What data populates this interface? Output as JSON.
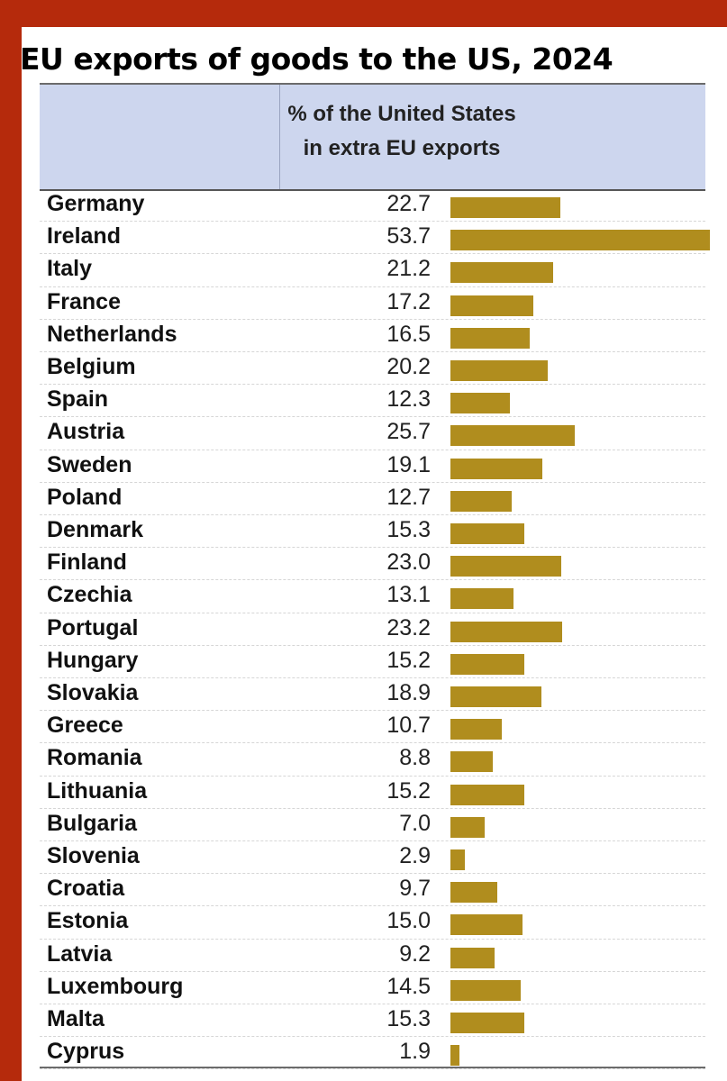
{
  "title": "EU exports of goods to the US, 2024",
  "colors": {
    "frame": "#b52a0c",
    "header_bg": "#cdd6ee",
    "bar": "#b08d1e"
  },
  "chart_data": {
    "type": "bar",
    "title": "EU exports of goods to the US, 2024",
    "column_header_line1": "% of the United States",
    "column_header_line2": "in extra EU exports",
    "xlim": [
      0,
      60
    ],
    "categories": [
      "Germany",
      "Ireland",
      "Italy",
      "France",
      "Netherlands",
      "Belgium",
      "Spain",
      "Austria",
      "Sweden",
      "Poland",
      "Denmark",
      "Finland",
      "Czechia",
      "Portugal",
      "Hungary",
      "Slovakia",
      "Greece",
      "Romania",
      "Lithuania",
      "Bulgaria",
      "Slovenia",
      "Croatia",
      "Estonia",
      "Latvia",
      "Luxembourg",
      "Malta",
      "Cyprus"
    ],
    "labels": [
      "22.7",
      "53.7",
      "21.2",
      "17.2",
      "16.5",
      "20.2",
      "12.3",
      "25.7",
      "19.1",
      "12.7",
      "15.3",
      "23.0",
      "13.1",
      "23.2",
      "15.2",
      "18.9",
      "10.7",
      "8.8",
      "15.2",
      "7.0",
      "2.9",
      "9.7",
      "15.0",
      "9.2",
      "14.5",
      "15.3",
      "1.9"
    ],
    "values": [
      22.7,
      53.7,
      21.2,
      17.2,
      16.5,
      20.2,
      12.3,
      25.7,
      19.1,
      12.7,
      15.3,
      23.0,
      13.1,
      23.2,
      15.2,
      18.9,
      10.7,
      8.8,
      15.2,
      7.0,
      2.9,
      9.7,
      15.0,
      9.2,
      14.5,
      15.3,
      1.9
    ]
  }
}
